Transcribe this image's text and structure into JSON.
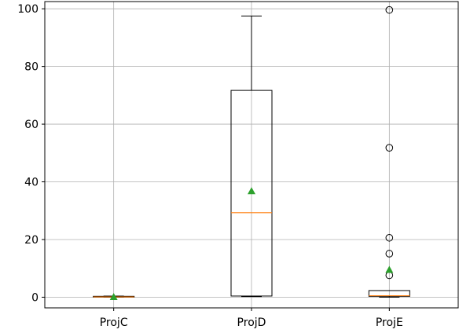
{
  "chart_data": {
    "type": "boxplot",
    "categories": [
      "ProjC",
      "ProjD",
      "ProjE"
    ],
    "boxes": [
      {
        "name": "ProjC",
        "whisker_low": 0,
        "q1": 0.05,
        "median": 0.1,
        "q3": 0.3,
        "whisker_high": 0.4,
        "mean": 0.1,
        "fliers": []
      },
      {
        "name": "ProjD",
        "whisker_low": 0.2,
        "q1": 0.4,
        "median": 29.3,
        "q3": 71.7,
        "whisker_high": 97.5,
        "mean": 36.8,
        "fliers": []
      },
      {
        "name": "ProjE",
        "whisker_low": 0,
        "q1": 0.3,
        "median": 0.5,
        "q3": 2.3,
        "whisker_high": 2.3,
        "mean": 9.5,
        "fliers": [
          99.6,
          51.8,
          20.6,
          15.1,
          7.6
        ]
      }
    ],
    "title": "",
    "xlabel": "",
    "ylabel": "",
    "ylim": [
      -3.7,
      102.5
    ],
    "yticks": [
      0,
      20,
      40,
      60,
      80,
      100
    ],
    "grid": true,
    "colors": {
      "box": "#000000",
      "median": "#ff7f0e",
      "mean": "#2ca02c",
      "grid": "#b0b0b0"
    }
  }
}
